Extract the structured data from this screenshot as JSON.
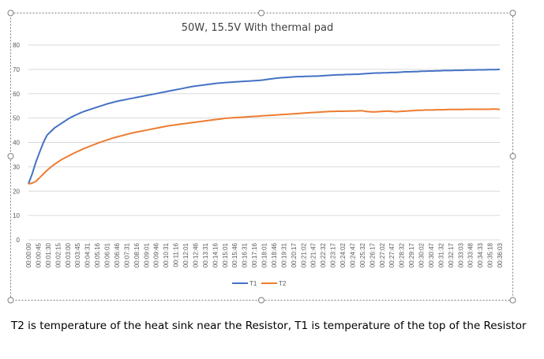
{
  "caption": "T2 is temperature of the heat sink near the Resistor, T1 is temperature of the top of the Resistor",
  "chart_data": {
    "type": "line",
    "title": "50W, 15.5V With thermal pad",
    "xlabel": "",
    "ylabel": "",
    "ylim": [
      0,
      80
    ],
    "yticks": [
      0,
      10,
      20,
      30,
      40,
      50,
      60,
      70,
      80
    ],
    "grid": true,
    "legend_position": "bottom",
    "x_tick_labels": [
      "00:00:00",
      "00:00:45",
      "00:01:30",
      "00:02:15",
      "00:03:00",
      "00:03:45",
      "00:04:31",
      "00:05:16",
      "00:06:01",
      "00:06:46",
      "00:07:31",
      "00:08:16",
      "00:09:01",
      "00:09:46",
      "00:10:31",
      "00:11:16",
      "00:12:01",
      "00:12:46",
      "00:13:31",
      "00:14:16",
      "00:15:01",
      "00:15:46",
      "00:16:31",
      "00:17:16",
      "00:18:01",
      "00:18:46",
      "00:19:31",
      "00:20:17",
      "00:21:02",
      "00:21:47",
      "00:22:32",
      "00:23:17",
      "00:24:02",
      "00:24:47",
      "00:25:32",
      "00:26:17",
      "00:27:02",
      "00:27:47",
      "00:28:32",
      "00:29:17",
      "00:30:02",
      "00:30:47",
      "00:31:32",
      "00:32:17",
      "00:33:03",
      "00:33:48",
      "00:34:33",
      "00:35:18",
      "00:36:03"
    ],
    "series": [
      {
        "name": "T1",
        "color": "#4472C4",
        "values": [
          23,
          27,
          32,
          36,
          40,
          43,
          44.5,
          46,
          47,
          48,
          49,
          50,
          50.8,
          51.5,
          52.2,
          52.8,
          53.3,
          53.8,
          54.3,
          54.8,
          55.3,
          55.8,
          56.2,
          56.6,
          57,
          57.3,
          57.6,
          57.9,
          58.2,
          58.5,
          58.8,
          59.1,
          59.4,
          59.7,
          60,
          60.3,
          60.6,
          60.9,
          61.2,
          61.5,
          61.8,
          62.1,
          62.4,
          62.7,
          63,
          63.2,
          63.4,
          63.6,
          63.8,
          64,
          64.2,
          64.4,
          64.5,
          64.6,
          64.7,
          64.8,
          64.9,
          65,
          65.1,
          65.2,
          65.3,
          65.4,
          65.5,
          65.7,
          65.9,
          66.1,
          66.3,
          66.5,
          66.6,
          66.7,
          66.8,
          66.9,
          67,
          67,
          67.1,
          67.1,
          67.2,
          67.2,
          67.3,
          67.4,
          67.5,
          67.6,
          67.7,
          67.8,
          67.8,
          67.9,
          67.9,
          68,
          68,
          68.1,
          68.2,
          68.3,
          68.4,
          68.5,
          68.5,
          68.6,
          68.6,
          68.7,
          68.7,
          68.8,
          68.9,
          69,
          69,
          69.1,
          69.1,
          69.2,
          69.2,
          69.3,
          69.3,
          69.4,
          69.4,
          69.5,
          69.5,
          69.5,
          69.6,
          69.6,
          69.6,
          69.7,
          69.7,
          69.7,
          69.8,
          69.8,
          69.8,
          69.9,
          69.9,
          69.9,
          70
        ]
      },
      {
        "name": "T2",
        "color": "#ED7D31",
        "values": [
          23,
          23.3,
          24,
          25.5,
          27,
          28.5,
          29.8,
          31,
          32,
          33,
          33.8,
          34.6,
          35.4,
          36.1,
          36.8,
          37.5,
          38.1,
          38.7,
          39.3,
          39.9,
          40.4,
          40.9,
          41.4,
          41.9,
          42.3,
          42.7,
          43.1,
          43.5,
          43.9,
          44.2,
          44.5,
          44.8,
          45.1,
          45.4,
          45.7,
          46,
          46.3,
          46.6,
          46.9,
          47.1,
          47.3,
          47.5,
          47.7,
          47.9,
          48.1,
          48.3,
          48.5,
          48.7,
          48.9,
          49.1,
          49.3,
          49.5,
          49.7,
          49.9,
          50,
          50.1,
          50.2,
          50.3,
          50.4,
          50.5,
          50.6,
          50.7,
          50.8,
          50.9,
          51,
          51.1,
          51.2,
          51.3,
          51.4,
          51.5,
          51.6,
          51.7,
          51.8,
          51.9,
          52,
          52.1,
          52.2,
          52.3,
          52.4,
          52.5,
          52.6,
          52.7,
          52.7,
          52.8,
          52.8,
          52.8,
          52.9,
          52.9,
          52.9,
          53,
          53,
          52.7,
          52.6,
          52.5,
          52.6,
          52.7,
          52.8,
          52.9,
          52.7,
          52.6,
          52.7,
          52.8,
          52.9,
          53,
          53.1,
          53.2,
          53.2,
          53.3,
          53.3,
          53.3,
          53.4,
          53.4,
          53.4,
          53.5,
          53.5,
          53.5,
          53.5,
          53.5,
          53.6,
          53.6,
          53.6,
          53.6,
          53.6,
          53.6,
          53.6,
          53.7,
          53.7,
          53.5
        ]
      }
    ]
  }
}
